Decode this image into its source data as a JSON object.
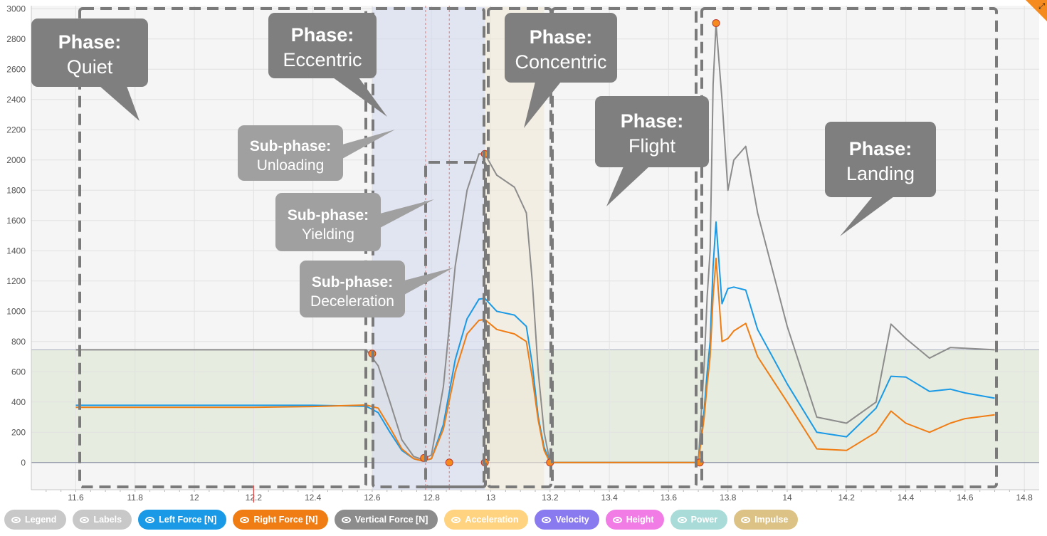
{
  "chart_data": {
    "type": "line",
    "xlim": [
      11.45,
      14.85
    ],
    "ylim": [
      -180,
      3020
    ],
    "x_ticks": [
      "11.6",
      "11.8",
      "12",
      "12.2",
      "12.4",
      "12.6",
      "12.8",
      "13",
      "13.2",
      "13.4",
      "13.6",
      "13.8",
      "14",
      "14.2",
      "14.4",
      "14.6",
      "14.8"
    ],
    "y_ticks": [
      "0",
      "200",
      "400",
      "600",
      "800",
      "1000",
      "1200",
      "1400",
      "1600",
      "1800",
      "2000",
      "2200",
      "2400",
      "2600",
      "2800",
      "3000"
    ],
    "grid": true,
    "reference_band": {
      "from": 0,
      "to": 745,
      "color": "#e3eadc"
    },
    "shaded_regions": [
      {
        "from": 12.6,
        "to": 12.98,
        "color": "#d4d8ee"
      },
      {
        "from": 12.98,
        "to": 13.18,
        "color": "#f1ead9"
      }
    ],
    "vertical_markers": [
      12.78,
      12.86
    ],
    "series": [
      {
        "name": "Vertical Force [N]",
        "color": "#8c8c8c",
        "x": [
          11.6,
          11.8,
          12.0,
          12.2,
          12.4,
          12.58,
          12.62,
          12.66,
          12.7,
          12.74,
          12.77,
          12.8,
          12.84,
          12.88,
          12.92,
          12.96,
          12.98,
          13.02,
          13.08,
          13.12,
          13.14,
          13.16,
          13.18,
          13.2,
          13.4,
          13.6,
          13.7,
          13.72,
          13.73,
          13.74,
          13.75,
          13.76,
          13.78,
          13.8,
          13.82,
          13.86,
          13.9,
          14.0,
          14.1,
          14.2,
          14.3,
          14.35,
          14.4,
          14.48,
          14.55,
          14.6,
          14.7
        ],
        "y": [
          745,
          745,
          745,
          745,
          745,
          745,
          640,
          400,
          150,
          40,
          20,
          50,
          500,
          1300,
          1800,
          2040,
          2040,
          1900,
          1820,
          1650,
          1200,
          600,
          200,
          0,
          0,
          0,
          0,
          650,
          1100,
          1400,
          2500,
          2900,
          2400,
          1800,
          2000,
          2090,
          1650,
          900,
          300,
          260,
          400,
          915,
          820,
          690,
          760,
          755,
          745
        ]
      },
      {
        "name": "Left Force [N]",
        "color": "#1a9ae6",
        "x": [
          11.6,
          11.8,
          12.0,
          12.2,
          12.4,
          12.58,
          12.62,
          12.66,
          12.7,
          12.74,
          12.77,
          12.8,
          12.84,
          12.88,
          12.92,
          12.96,
          12.98,
          13.02,
          13.08,
          13.12,
          13.14,
          13.16,
          13.18,
          13.2,
          13.4,
          13.6,
          13.7,
          13.72,
          13.73,
          13.74,
          13.75,
          13.76,
          13.78,
          13.8,
          13.82,
          13.86,
          13.9,
          14.0,
          14.1,
          14.2,
          14.3,
          14.35,
          14.4,
          14.48,
          14.55,
          14.6,
          14.7
        ],
        "y": [
          378,
          378,
          378,
          378,
          378,
          372,
          330,
          200,
          80,
          25,
          10,
          25,
          250,
          680,
          950,
          1080,
          1085,
          1000,
          975,
          900,
          650,
          300,
          100,
          0,
          0,
          0,
          0,
          350,
          600,
          800,
          1300,
          1590,
          1050,
          1150,
          1160,
          1140,
          880,
          520,
          200,
          170,
          360,
          570,
          565,
          470,
          485,
          460,
          425
        ]
      },
      {
        "name": "Right Force [N]",
        "color": "#f07d14",
        "x": [
          11.6,
          11.8,
          12.0,
          12.2,
          12.4,
          12.58,
          12.62,
          12.66,
          12.7,
          12.74,
          12.77,
          12.8,
          12.84,
          12.88,
          12.92,
          12.96,
          12.98,
          13.02,
          13.08,
          13.12,
          13.14,
          13.16,
          13.18,
          13.2,
          13.4,
          13.6,
          13.7,
          13.72,
          13.73,
          13.74,
          13.75,
          13.76,
          13.78,
          13.8,
          13.82,
          13.86,
          13.9,
          14.0,
          14.1,
          14.2,
          14.3,
          14.35,
          14.4,
          14.48,
          14.55,
          14.6,
          14.7
        ],
        "y": [
          365,
          365,
          365,
          365,
          370,
          380,
          360,
          230,
          90,
          25,
          10,
          25,
          220,
          600,
          850,
          940,
          945,
          880,
          850,
          800,
          560,
          280,
          80,
          0,
          0,
          0,
          0,
          300,
          520,
          700,
          1100,
          1350,
          800,
          820,
          870,
          920,
          700,
          400,
          90,
          80,
          200,
          340,
          260,
          200,
          260,
          290,
          315
        ]
      }
    ],
    "markers": [
      {
        "x": 12.6,
        "y": 720
      },
      {
        "x": 12.775,
        "y": 30
      },
      {
        "x": 12.86,
        "y": 0
      },
      {
        "x": 12.98,
        "y": 2040
      },
      {
        "x": 12.98,
        "y": 0
      },
      {
        "x": 13.2,
        "y": 0
      },
      {
        "x": 13.705,
        "y": 0
      },
      {
        "x": 13.76,
        "y": 2905
      }
    ],
    "annotations": [
      {
        "title": "Phase:",
        "subtitle": "Quiet"
      },
      {
        "title": "Phase:",
        "subtitle": "Eccentric"
      },
      {
        "title": "Phase:",
        "subtitle": "Concentric"
      },
      {
        "title": "Phase:",
        "subtitle": "Flight"
      },
      {
        "title": "Phase:",
        "subtitle": "Landing"
      },
      {
        "title": "Sub-phase:",
        "subtitle": "Unloading"
      },
      {
        "title": "Sub-phase:",
        "subtitle": "Yielding"
      },
      {
        "title": "Sub-phase:",
        "subtitle": "Deceleration"
      }
    ]
  },
  "legend": {
    "items": [
      {
        "label": "Legend",
        "color": "#c8c8c8"
      },
      {
        "label": "Labels",
        "color": "#c8c8c8"
      },
      {
        "label": "Left Force [N]",
        "color": "#1a9ae6"
      },
      {
        "label": "Right Force [N]",
        "color": "#f07d14"
      },
      {
        "label": "Vertical Force [N]",
        "color": "#8c8c8c"
      },
      {
        "label": "Acceleration",
        "color": "#ffd380"
      },
      {
        "label": "Velocity",
        "color": "#8a7af0"
      },
      {
        "label": "Height",
        "color": "#f27ce6"
      },
      {
        "label": "Power",
        "color": "#a9dcd8"
      },
      {
        "label": "Impulse",
        "color": "#dcc285"
      }
    ]
  }
}
